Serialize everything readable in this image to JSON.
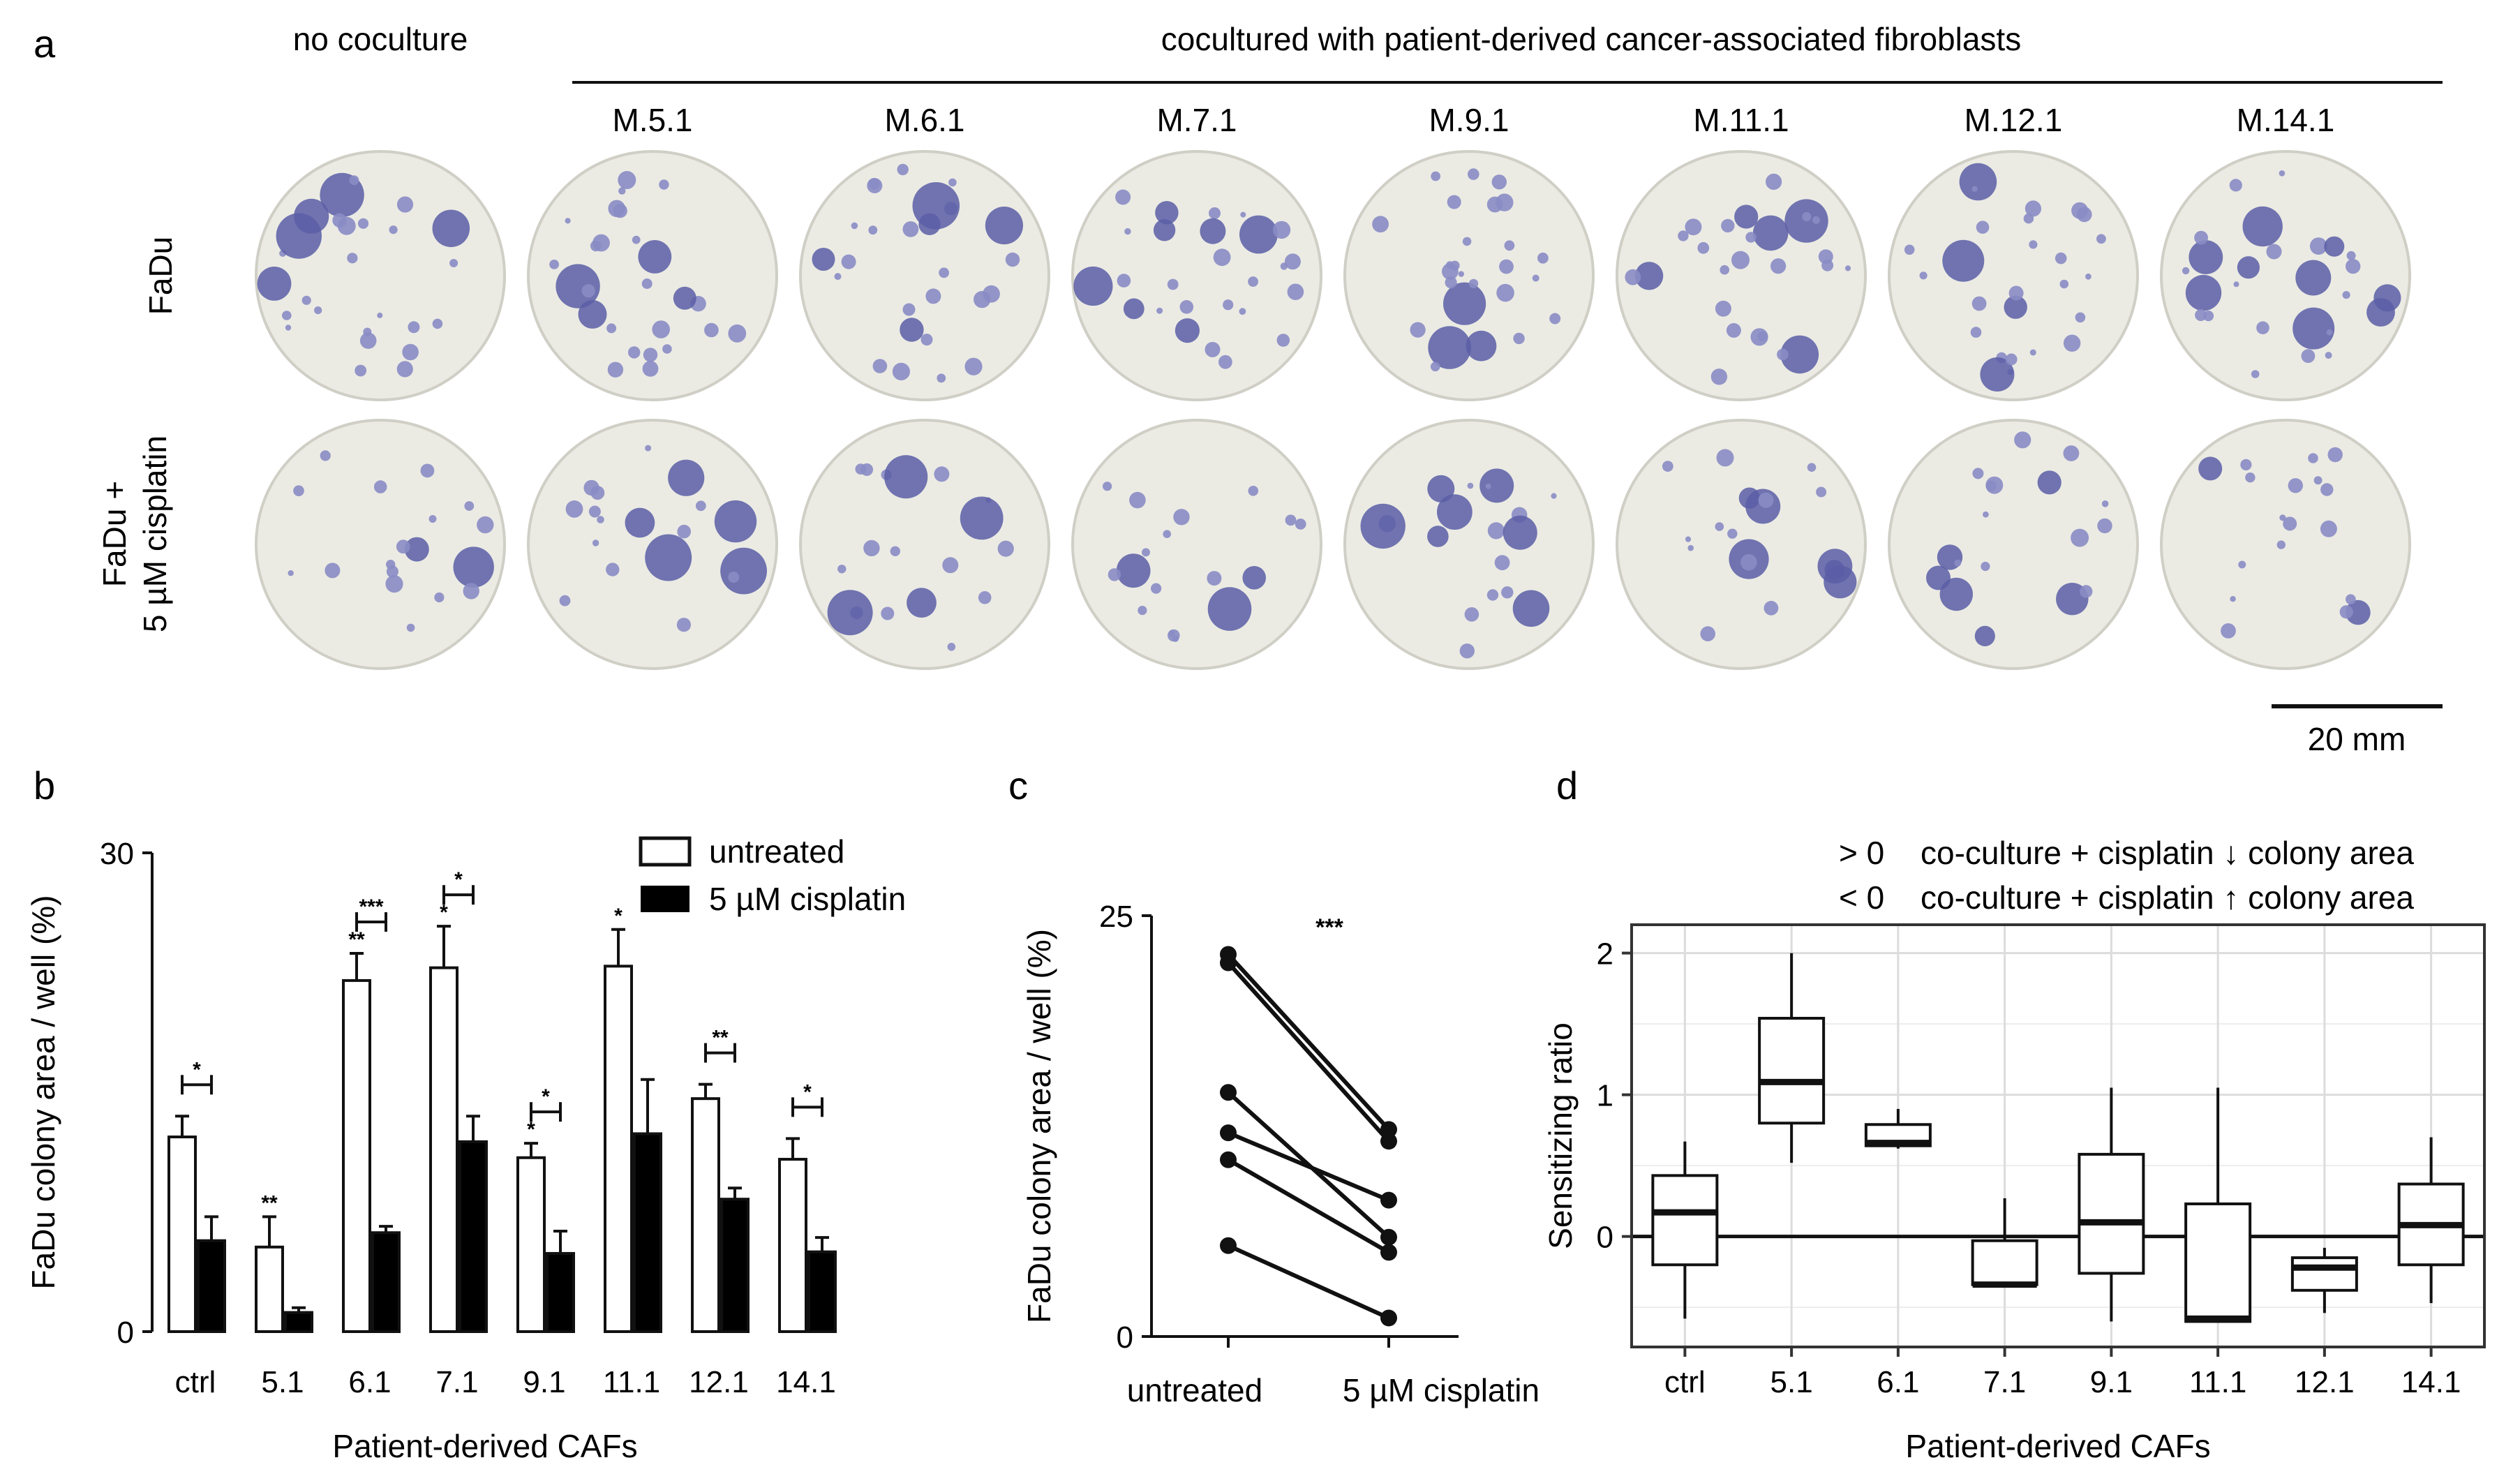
{
  "panel_a": {
    "label": "a",
    "no_coculture_label": "no coculture",
    "coculture_label": "cocultured with patient-derived cancer-associated fibroblasts",
    "columns": [
      "M.5.1",
      "M.6.1",
      "M.7.1",
      "M.9.1",
      "M.11.1",
      "M.12.1",
      "M.14.1"
    ],
    "row_labels": {
      "row1": "FaDu",
      "row2_line1": "FaDu +",
      "row2_line2": "5 µM cisplatin"
    },
    "scale_bar": "20 mm",
    "colors": {
      "well": "#ebebe4",
      "rim": "#cfcfc6",
      "colony": "#5a5ea6",
      "colony_light": "#8a8cc4"
    }
  },
  "panel_b": {
    "label": "b"
  },
  "panel_c": {
    "label": "c"
  },
  "panel_d": {
    "label": "d",
    "legend_line1_sign": "> 0",
    "legend_line1_text": "co-culture + cisplatin ↓ colony area",
    "legend_line2_sign": "< 0",
    "legend_line2_text": "co-culture + cisplatin ↑ colony area"
  },
  "chart_data": [
    {
      "id": "b",
      "type": "bar",
      "categories": [
        "ctrl",
        "5.1",
        "6.1",
        "7.1",
        "9.1",
        "11.1",
        "12.1",
        "14.1"
      ],
      "series": [
        {
          "name": "untreated",
          "values": [
            12.2,
            5.3,
            22.0,
            22.8,
            10.9,
            22.9,
            14.6,
            10.8
          ],
          "errors": [
            1.3,
            1.9,
            1.7,
            2.6,
            0.9,
            2.3,
            0.9,
            1.3
          ],
          "color": "#ffffff"
        },
        {
          "name": "5 µM cisplatin",
          "values": [
            5.7,
            1.2,
            6.2,
            11.9,
            4.9,
            12.4,
            8.3,
            5.0
          ],
          "errors": [
            1.5,
            0.3,
            0.4,
            1.6,
            1.4,
            3.4,
            0.7,
            0.9
          ],
          "color": "#000000"
        }
      ],
      "significance": [
        "*",
        "",
        "***",
        "*",
        "*",
        "",
        "**",
        "*"
      ],
      "bar_stars": [
        "",
        "**",
        "**",
        "*",
        "*",
        "*",
        "",
        ""
      ],
      "ylim": [
        0,
        30
      ],
      "yticks": [
        0,
        30
      ],
      "ylabel": "FaDu colony area / well (%)",
      "xlabel": "Patient-derived CAFs"
    },
    {
      "id": "c",
      "type": "line",
      "categories": [
        "untreated",
        "5 µM cisplatin"
      ],
      "pairs": [
        [
          22.7,
          12.3
        ],
        [
          22.2,
          11.6
        ],
        [
          14.5,
          5.9
        ],
        [
          12.1,
          8.1
        ],
        [
          10.5,
          5.0
        ],
        [
          5.4,
          1.1
        ]
      ],
      "significance": "***",
      "ylim": [
        0,
        25
      ],
      "yticks": [
        0,
        25
      ],
      "ylabel": "FaDu colony area / well (%)"
    },
    {
      "id": "d",
      "type": "box",
      "categories": [
        "ctrl",
        "5.1",
        "6.1",
        "7.1",
        "9.1",
        "11.1",
        "12.1",
        "14.1"
      ],
      "boxes": [
        {
          "min": -0.58,
          "q1": -0.2,
          "median": 0.17,
          "q3": 0.43,
          "max": 0.67
        },
        {
          "min": 0.52,
          "q1": 0.8,
          "median": 1.09,
          "q3": 1.54,
          "max": 2.0
        },
        {
          "min": 0.62,
          "q1": 0.64,
          "median": 0.66,
          "q3": 0.79,
          "max": 0.9
        },
        {
          "min": -0.35,
          "q1": -0.34,
          "median": -0.34,
          "q3": -0.03,
          "max": 0.27
        },
        {
          "min": -0.6,
          "q1": -0.26,
          "median": 0.1,
          "q3": 0.58,
          "max": 1.05
        },
        {
          "min": -0.6,
          "q1": -0.6,
          "median": -0.58,
          "q3": 0.23,
          "max": 1.05
        },
        {
          "min": -0.54,
          "q1": -0.38,
          "median": -0.22,
          "q3": -0.15,
          "max": -0.08
        },
        {
          "min": -0.47,
          "q1": -0.2,
          "median": 0.08,
          "q3": 0.37,
          "max": 0.7
        }
      ],
      "ylim": [
        -0.78,
        2.2
      ],
      "yticks": [
        -1,
        0,
        1,
        2
      ],
      "ytick_labels": [
        "-1",
        "0",
        "1",
        "2"
      ],
      "reference_line": 0,
      "grid": true,
      "ylabel": "Sensitizing ratio",
      "xlabel": "Patient-derived CAFs"
    }
  ]
}
